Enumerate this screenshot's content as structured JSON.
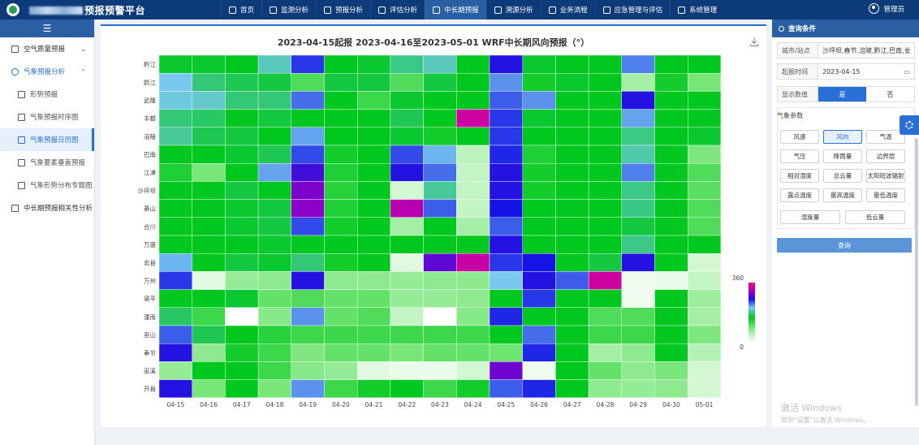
{
  "header": {
    "title": "预报预警平台",
    "nav": [
      {
        "label": "首页",
        "icon": "home-icon"
      },
      {
        "label": "监测分析",
        "icon": "globe-icon"
      },
      {
        "label": "预报分析",
        "icon": "chart-line-icon"
      },
      {
        "label": "评估分析",
        "icon": "document-icon"
      },
      {
        "label": "中长期预报",
        "icon": "calendar-chart-icon",
        "active": true
      },
      {
        "label": "溯源分析",
        "icon": "search-icon"
      },
      {
        "label": "业务流程",
        "icon": "check-square-icon"
      },
      {
        "label": "应急管理与评估",
        "icon": "shield-icon"
      },
      {
        "label": "系统管理",
        "icon": "gear-icon"
      }
    ],
    "user": "管理员"
  },
  "sidebar": {
    "collapse_icon": "menu-icon",
    "items": [
      {
        "label": "空气质量预报",
        "type": "group",
        "icon": "arrow-up-icon",
        "chevron": "⌄"
      },
      {
        "label": "气象预报分析",
        "type": "group-open",
        "icon": "search-icon",
        "chevron": "⌃"
      },
      {
        "label": "形势预报",
        "type": "sub",
        "icon": "wind-icon"
      },
      {
        "label": "气象预报时序图",
        "type": "sub",
        "icon": "line-chart-icon"
      },
      {
        "label": "气象预报日历图",
        "type": "sub-active",
        "icon": "bar-chart-icon"
      },
      {
        "label": "气象要素垂直预报",
        "type": "sub",
        "icon": "image-icon"
      },
      {
        "label": "气象形势分布专题图",
        "type": "sub",
        "icon": "line-chart-icon"
      },
      {
        "label": "中长期预报相关性分析",
        "type": "group",
        "icon": "bar-chart-icon"
      }
    ]
  },
  "right_panel": {
    "header": "查询条件",
    "city_label": "城市/站点",
    "city_value": "沙坪坝,春节,涪陵,黔江,巴南,长",
    "date_label": "起报时间",
    "date_value": "2023-04-15",
    "show_label": "显示数值",
    "show_yes": "是",
    "show_no": "否",
    "params_label": "气象参数",
    "params": [
      "风速",
      "风向",
      "气温",
      "气压",
      "降雨量",
      "边界层",
      "相对湿度",
      "总云量",
      "太阳短波辐射",
      "露点温度",
      "最高温度",
      "最低温度",
      "湿度量",
      "低云量"
    ],
    "selected_param": "风向",
    "query_button": "查询"
  },
  "watermark": {
    "line1": "激活 Windows",
    "line2": "转到\"设置\"以激活 Windows。"
  },
  "colors": {
    "header": "#0d3a78",
    "accent": "#2a6fd6",
    "nav_active": "#2a5fa3"
  },
  "chart_data": {
    "type": "heatmap",
    "title": "2023-04-15起报 2023-04-16至2023-05-01 WRF中长期风向预报（°）",
    "x": [
      "04-15",
      "04-16",
      "04-17",
      "04-18",
      "04-19",
      "04-20",
      "04-21",
      "04-22",
      "04-23",
      "04-24",
      "04-25",
      "04-26",
      "04-27",
      "04-28",
      "04-29",
      "04-30",
      "05-01"
    ],
    "y": [
      "黔江",
      "黔江",
      "武隆",
      "丰都",
      "涪陵",
      "巴南",
      "江津",
      "沙坪坝",
      "綦山",
      "合川",
      "万盛",
      "忠县",
      "万州",
      "梁平",
      "潼南",
      "巫山",
      "奉节",
      "巫溪",
      "开县"
    ],
    "visual_map": {
      "min": 0,
      "max": 360
    },
    "values": [
      [
        155,
        155,
        150,
        195,
        250,
        150,
        155,
        180,
        195,
        150,
        265,
        155,
        150,
        150,
        230,
        150,
        150
      ],
      [
        210,
        175,
        165,
        160,
        110,
        160,
        160,
        110,
        160,
        150,
        225,
        140,
        155,
        150,
        60,
        140,
        90
      ],
      [
        205,
        200,
        175,
        175,
        235,
        150,
        120,
        155,
        150,
        150,
        240,
        225,
        150,
        150,
        265,
        150,
        150
      ],
      [
        175,
        170,
        150,
        160,
        150,
        150,
        150,
        165,
        150,
        340,
        250,
        155,
        150,
        150,
        220,
        150,
        150
      ],
      [
        185,
        165,
        160,
        150,
        220,
        150,
        150,
        155,
        140,
        150,
        250,
        150,
        150,
        150,
        180,
        150,
        155
      ],
      [
        150,
        150,
        155,
        165,
        245,
        140,
        150,
        245,
        215,
        45,
        255,
        135,
        150,
        150,
        190,
        150,
        85
      ],
      [
        135,
        90,
        150,
        220,
        275,
        135,
        150,
        265,
        235,
        40,
        265,
        140,
        150,
        150,
        230,
        150,
        110
      ],
      [
        150,
        150,
        160,
        150,
        295,
        130,
        150,
        30,
        185,
        40,
        265,
        140,
        150,
        150,
        180,
        150,
        105
      ],
      [
        150,
        150,
        155,
        160,
        300,
        135,
        150,
        325,
        240,
        40,
        260,
        150,
        150,
        150,
        180,
        150,
        110
      ],
      [
        150,
        150,
        155,
        160,
        245,
        140,
        150,
        60,
        150,
        60,
        240,
        150,
        150,
        150,
        160,
        150,
        110
      ],
      [
        150,
        150,
        150,
        155,
        150,
        150,
        150,
        150,
        150,
        150,
        265,
        150,
        150,
        150,
        180,
        150,
        150
      ],
      [
        215,
        150,
        160,
        155,
        175,
        140,
        150,
        20,
        285,
        335,
        250,
        260,
        150,
        160,
        265,
        150,
        30
      ],
      [
        250,
        20,
        70,
        75,
        265,
        75,
        75,
        70,
        75,
        75,
        210,
        265,
        240,
        340,
        10,
        15,
        40
      ],
      [
        150,
        150,
        155,
        100,
        110,
        100,
        100,
        70,
        70,
        75,
        150,
        250,
        150,
        150,
        10,
        150,
        65
      ],
      [
        170,
        120,
        0,
        80,
        225,
        100,
        110,
        40,
        0,
        80,
        255,
        150,
        150,
        110,
        110,
        150,
        60
      ],
      [
        240,
        165,
        150,
        130,
        120,
        120,
        120,
        120,
        120,
        120,
        150,
        235,
        150,
        120,
        120,
        150,
        85
      ],
      [
        265,
        75,
        140,
        120,
        85,
        100,
        100,
        90,
        100,
        100,
        95,
        255,
        150,
        60,
        75,
        150,
        50
      ],
      [
        70,
        150,
        150,
        120,
        80,
        70,
        20,
        15,
        15,
        30,
        290,
        10,
        150,
        100,
        75,
        90,
        30
      ],
      [
        265,
        90,
        150,
        90,
        225,
        120,
        140,
        150,
        120,
        140,
        240,
        255,
        150,
        75,
        70,
        75,
        30
      ]
    ]
  }
}
